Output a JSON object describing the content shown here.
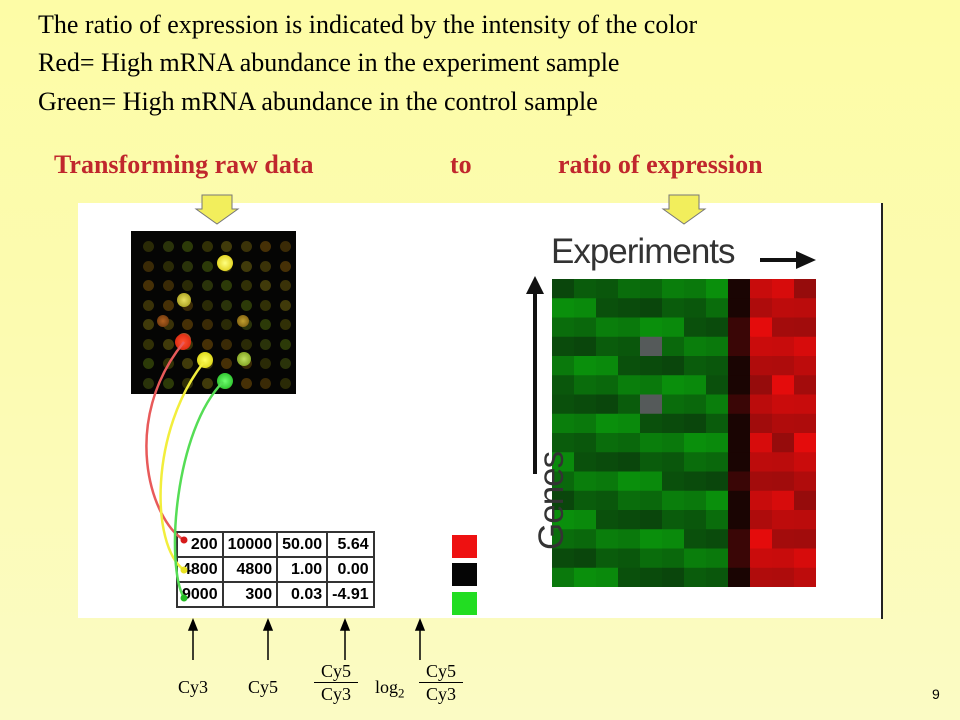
{
  "header": {
    "line1": "The ratio of expression is indicated by the intensity of the color",
    "line2": "Red= High mRNA abundance in the experiment sample",
    "line3": "Green= High mRNA abundance in the control sample"
  },
  "subtitle": {
    "left": "Transforming raw data",
    "middle": "to",
    "right": "ratio of expression"
  },
  "table": {
    "rows": [
      {
        "cy3": "200",
        "cy5": "10000",
        "ratio": "50.00",
        "log2": "5.64",
        "color": "#ee1111"
      },
      {
        "cy3": "4800",
        "cy5": "4800",
        "ratio": "1.00",
        "log2": "0.00",
        "color": "#050505"
      },
      {
        "cy3": "9000",
        "cy5": "300",
        "ratio": "0.03",
        "log2": "-4.91",
        "color": "#22dd22"
      }
    ]
  },
  "heatmap": {
    "xlabel": "Experiments",
    "ylabel": "Genes",
    "colors": {
      "low": "#0e7a10",
      "high": "#c81010",
      "gap": "#555a5a"
    }
  },
  "bottom_labels": {
    "cy3": "Cy3",
    "cy5": "Cy5",
    "ratio_num": "Cy5",
    "ratio_den": "Cy3",
    "log_prefix": "log",
    "log_base": "2",
    "log_num": "Cy5",
    "log_den": "Cy3"
  },
  "page_number": "9",
  "colors": {
    "title_red": "#c0272d",
    "arrow_yellow": "#f2ee5c"
  }
}
